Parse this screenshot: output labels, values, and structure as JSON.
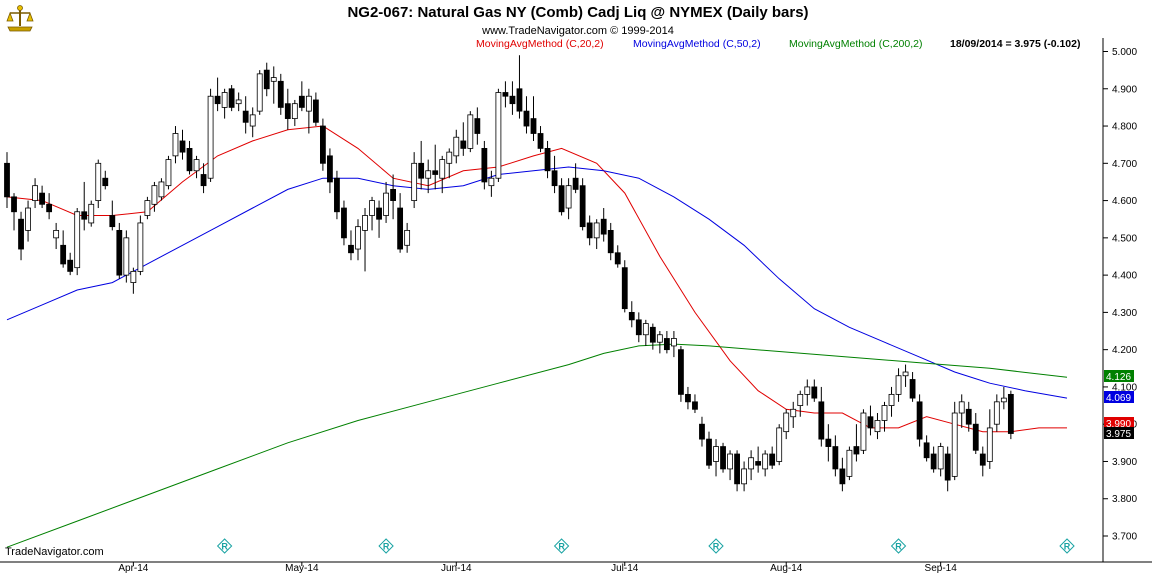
{
  "header": {
    "title": "NG2-067:  Natural Gas NY (Comb) Cadj Liq @ NYMEX  (Daily bars)",
    "copyright": "www.TradeNavigator.com © 1999-2014",
    "legend": [
      {
        "label": "MovingAvgMethod (C,20,2)",
        "color": "#e00000"
      },
      {
        "label": "MovingAvgMethod (C,50,2)",
        "color": "#0000e0"
      },
      {
        "label": "MovingAvgMethod (C,200,2)",
        "color": "#008000"
      }
    ],
    "last_quote": "18/09/2014 = 3.975 (-0.102)"
  },
  "footer": {
    "brand": "TradeNavigator.com"
  },
  "chart_data": {
    "type": "candlestick",
    "symbol": "NG2-067",
    "ylim": [
      3.67,
      5.03
    ],
    "yticks": [
      "5.000",
      "4.900",
      "4.800",
      "4.700",
      "4.600",
      "4.500",
      "4.400",
      "4.300",
      "4.200",
      "4.100",
      "4.000",
      "3.900",
      "3.800",
      "3.700"
    ],
    "xticks": [
      {
        "label": "Apr-14",
        "index": 18
      },
      {
        "label": "May-14",
        "index": 42
      },
      {
        "label": "Jun-14",
        "index": 64
      },
      {
        "label": "Jul-14",
        "index": 88
      },
      {
        "label": "Aug-14",
        "index": 111
      },
      {
        "label": "Sep-14",
        "index": 133
      }
    ],
    "roll_markers": [
      31,
      54,
      79,
      101,
      127,
      151
    ],
    "last_values": [
      {
        "label": "4.126",
        "value": 4.126,
        "bg": "#008000",
        "fg": "#ffffff"
      },
      {
        "label": "4.069",
        "value": 4.069,
        "bg": "#0000e0",
        "fg": "#ffffff"
      },
      {
        "label": "3.990",
        "value": 3.99,
        "bg": "#e00000",
        "fg": "#ffffff"
      },
      {
        "label": "3.975",
        "value": 3.975,
        "bg": "#000000",
        "fg": "#ffffff"
      }
    ],
    "ohlc": [
      [
        4.7,
        4.73,
        4.58,
        4.61
      ],
      [
        4.61,
        4.62,
        4.52,
        4.57
      ],
      [
        4.55,
        4.57,
        4.44,
        4.47
      ],
      [
        4.52,
        4.6,
        4.49,
        4.58
      ],
      [
        4.6,
        4.66,
        4.58,
        4.64
      ],
      [
        4.62,
        4.64,
        4.58,
        4.59
      ],
      [
        4.59,
        4.62,
        4.55,
        4.57
      ],
      [
        4.5,
        4.54,
        4.47,
        4.52
      ],
      [
        4.48,
        4.52,
        4.42,
        4.43
      ],
      [
        4.44,
        4.46,
        4.4,
        4.41
      ],
      [
        4.42,
        4.58,
        4.4,
        4.57
      ],
      [
        4.57,
        4.65,
        4.52,
        4.55
      ],
      [
        4.54,
        4.6,
        4.53,
        4.59
      ],
      [
        4.6,
        4.71,
        4.58,
        4.7
      ],
      [
        4.66,
        4.68,
        4.63,
        4.64
      ],
      [
        4.56,
        4.6,
        4.52,
        4.53
      ],
      [
        4.52,
        4.54,
        4.39,
        4.4
      ],
      [
        4.4,
        4.52,
        4.38,
        4.5
      ],
      [
        4.38,
        4.42,
        4.35,
        4.41
      ],
      [
        4.41,
        4.56,
        4.4,
        4.54
      ],
      [
        4.56,
        4.61,
        4.55,
        4.6
      ],
      [
        4.59,
        4.65,
        4.57,
        4.64
      ],
      [
        4.61,
        4.66,
        4.6,
        4.65
      ],
      [
        4.64,
        4.72,
        4.63,
        4.71
      ],
      [
        4.72,
        4.8,
        4.7,
        4.78
      ],
      [
        4.76,
        4.79,
        4.71,
        4.73
      ],
      [
        4.74,
        4.76,
        4.67,
        4.68
      ],
      [
        4.68,
        4.72,
        4.66,
        4.71
      ],
      [
        4.67,
        4.7,
        4.62,
        4.64
      ],
      [
        4.66,
        4.9,
        4.65,
        4.88
      ],
      [
        4.88,
        4.93,
        4.84,
        4.86
      ],
      [
        4.85,
        4.9,
        4.82,
        4.89
      ],
      [
        4.9,
        4.91,
        4.84,
        4.85
      ],
      [
        4.86,
        4.89,
        4.84,
        4.87
      ],
      [
        4.84,
        4.88,
        4.78,
        4.81
      ],
      [
        4.8,
        4.85,
        4.77,
        4.83
      ],
      [
        4.84,
        4.95,
        4.83,
        4.94
      ],
      [
        4.95,
        4.97,
        4.88,
        4.9
      ],
      [
        4.92,
        4.96,
        4.86,
        4.93
      ],
      [
        4.92,
        4.94,
        4.83,
        4.85
      ],
      [
        4.86,
        4.9,
        4.79,
        4.82
      ],
      [
        4.82,
        4.87,
        4.8,
        4.86
      ],
      [
        4.88,
        4.92,
        4.84,
        4.85
      ],
      [
        4.84,
        4.9,
        4.78,
        4.88
      ],
      [
        4.87,
        4.89,
        4.8,
        4.81
      ],
      [
        4.8,
        4.82,
        4.68,
        4.7
      ],
      [
        4.72,
        4.74,
        4.62,
        4.65
      ],
      [
        4.66,
        4.68,
        4.55,
        4.57
      ],
      [
        4.58,
        4.6,
        4.48,
        4.5
      ],
      [
        4.48,
        4.52,
        4.44,
        4.46
      ],
      [
        4.47,
        4.55,
        4.44,
        4.53
      ],
      [
        4.52,
        4.58,
        4.41,
        4.56
      ],
      [
        4.56,
        4.61,
        4.52,
        4.6
      ],
      [
        4.58,
        4.6,
        4.5,
        4.55
      ],
      [
        4.56,
        4.65,
        4.54,
        4.62
      ],
      [
        4.63,
        4.67,
        4.55,
        4.6
      ],
      [
        4.58,
        4.62,
        4.46,
        4.47
      ],
      [
        4.48,
        4.54,
        4.46,
        4.52
      ],
      [
        4.6,
        4.73,
        4.58,
        4.7
      ],
      [
        4.7,
        4.76,
        4.63,
        4.66
      ],
      [
        4.66,
        4.71,
        4.62,
        4.68
      ],
      [
        4.68,
        4.75,
        4.63,
        4.67
      ],
      [
        4.66,
        4.72,
        4.62,
        4.71
      ],
      [
        4.7,
        4.74,
        4.66,
        4.73
      ],
      [
        4.72,
        4.79,
        4.7,
        4.77
      ],
      [
        4.76,
        4.81,
        4.72,
        4.74
      ],
      [
        4.74,
        4.84,
        4.73,
        4.83
      ],
      [
        4.82,
        4.85,
        4.75,
        4.78
      ],
      [
        4.74,
        4.76,
        4.63,
        4.65
      ],
      [
        4.64,
        4.68,
        4.61,
        4.66
      ],
      [
        4.66,
        4.9,
        4.65,
        4.89
      ],
      [
        4.89,
        4.92,
        4.85,
        4.88
      ],
      [
        4.88,
        4.92,
        4.83,
        4.86
      ],
      [
        4.9,
        4.99,
        4.82,
        4.84
      ],
      [
        4.84,
        4.88,
        4.78,
        4.8
      ],
      [
        4.82,
        4.88,
        4.76,
        4.78
      ],
      [
        4.78,
        4.8,
        4.73,
        4.74
      ],
      [
        4.74,
        4.76,
        4.66,
        4.68
      ],
      [
        4.68,
        4.72,
        4.62,
        4.64
      ],
      [
        4.64,
        4.66,
        4.56,
        4.57
      ],
      [
        4.58,
        4.66,
        4.55,
        4.64
      ],
      [
        4.66,
        4.7,
        4.62,
        4.63
      ],
      [
        4.64,
        4.66,
        4.52,
        4.53
      ],
      [
        4.54,
        4.56,
        4.48,
        4.5
      ],
      [
        4.5,
        4.55,
        4.47,
        4.54
      ],
      [
        4.55,
        4.58,
        4.49,
        4.51
      ],
      [
        4.52,
        4.54,
        4.44,
        4.46
      ],
      [
        4.46,
        4.48,
        4.42,
        4.43
      ],
      [
        4.42,
        4.44,
        4.3,
        4.31
      ],
      [
        4.3,
        4.33,
        4.26,
        4.28
      ],
      [
        4.28,
        4.3,
        4.22,
        4.24
      ],
      [
        4.24,
        4.28,
        4.21,
        4.27
      ],
      [
        4.26,
        4.27,
        4.2,
        4.22
      ],
      [
        4.22,
        4.25,
        4.19,
        4.24
      ],
      [
        4.23,
        4.25,
        4.19,
        4.2
      ],
      [
        4.21,
        4.25,
        4.18,
        4.23
      ],
      [
        4.2,
        4.21,
        4.06,
        4.08
      ],
      [
        4.08,
        4.1,
        4.04,
        4.06
      ],
      [
        4.06,
        4.08,
        4.03,
        4.04
      ],
      [
        4.0,
        4.02,
        3.94,
        3.96
      ],
      [
        3.96,
        3.98,
        3.88,
        3.89
      ],
      [
        3.9,
        3.96,
        3.86,
        3.94
      ],
      [
        3.94,
        3.95,
        3.87,
        3.88
      ],
      [
        3.88,
        3.93,
        3.85,
        3.92
      ],
      [
        3.92,
        3.93,
        3.82,
        3.84
      ],
      [
        3.84,
        3.9,
        3.82,
        3.88
      ],
      [
        3.88,
        3.93,
        3.85,
        3.91
      ],
      [
        3.9,
        3.94,
        3.87,
        3.89
      ],
      [
        3.88,
        3.93,
        3.86,
        3.92
      ],
      [
        3.92,
        3.94,
        3.88,
        3.89
      ],
      [
        3.9,
        4.0,
        3.89,
        3.99
      ],
      [
        3.98,
        4.04,
        3.96,
        4.03
      ],
      [
        4.02,
        4.06,
        3.99,
        4.04
      ],
      [
        4.05,
        4.09,
        4.02,
        4.08
      ],
      [
        4.08,
        4.12,
        4.05,
        4.1
      ],
      [
        4.1,
        4.12,
        4.06,
        4.07
      ],
      [
        4.06,
        4.1,
        3.94,
        3.96
      ],
      [
        3.96,
        4.0,
        3.9,
        3.94
      ],
      [
        3.94,
        3.97,
        3.86,
        3.88
      ],
      [
        3.88,
        3.91,
        3.82,
        3.84
      ],
      [
        3.86,
        3.94,
        3.85,
        3.93
      ],
      [
        3.94,
        4.0,
        3.9,
        3.92
      ],
      [
        3.93,
        4.04,
        3.92,
        4.03
      ],
      [
        4.02,
        4.05,
        3.97,
        3.99
      ],
      [
        3.98,
        4.03,
        3.96,
        4.01
      ],
      [
        4.01,
        4.06,
        3.98,
        4.05
      ],
      [
        4.05,
        4.1,
        4.02,
        4.08
      ],
      [
        4.08,
        4.15,
        4.06,
        4.13
      ],
      [
        4.13,
        4.16,
        4.1,
        4.14
      ],
      [
        4.12,
        4.14,
        4.06,
        4.07
      ],
      [
        4.06,
        4.08,
        3.94,
        3.96
      ],
      [
        3.95,
        3.97,
        3.9,
        3.91
      ],
      [
        3.92,
        3.94,
        3.87,
        3.88
      ],
      [
        3.88,
        3.95,
        3.86,
        3.94
      ],
      [
        3.92,
        3.94,
        3.82,
        3.85
      ],
      [
        3.86,
        4.06,
        3.85,
        4.03
      ],
      [
        4.03,
        4.08,
        3.99,
        4.06
      ],
      [
        4.04,
        4.06,
        3.98,
        4.0
      ],
      [
        4.0,
        4.03,
        3.92,
        3.93
      ],
      [
        3.92,
        3.94,
        3.86,
        3.89
      ],
      [
        3.9,
        4.04,
        3.88,
        3.99
      ],
      [
        4.0,
        4.08,
        3.98,
        4.06
      ],
      [
        4.06,
        4.1,
        4.04,
        4.07
      ],
      [
        4.08,
        4.09,
        3.96,
        3.975
      ]
    ],
    "series": [
      {
        "name": "MovingAvgMethod (C,20,2)",
        "color": "#e00000",
        "points": [
          [
            0,
            4.61
          ],
          [
            5,
            4.6
          ],
          [
            10,
            4.56
          ],
          [
            15,
            4.56
          ],
          [
            20,
            4.57
          ],
          [
            25,
            4.65
          ],
          [
            30,
            4.72
          ],
          [
            35,
            4.76
          ],
          [
            40,
            4.79
          ],
          [
            45,
            4.8
          ],
          [
            50,
            4.74
          ],
          [
            55,
            4.66
          ],
          [
            60,
            4.64
          ],
          [
            65,
            4.68
          ],
          [
            70,
            4.69
          ],
          [
            75,
            4.72
          ],
          [
            79,
            4.74
          ],
          [
            84,
            4.7
          ],
          [
            88,
            4.62
          ],
          [
            93,
            4.45
          ],
          [
            98,
            4.3
          ],
          [
            103,
            4.17
          ],
          [
            107,
            4.09
          ],
          [
            111,
            4.04
          ],
          [
            115,
            4.03
          ],
          [
            119,
            4.03
          ],
          [
            123,
            3.99
          ],
          [
            127,
            3.99
          ],
          [
            131,
            4.02
          ],
          [
            135,
            4.0
          ],
          [
            139,
            3.98
          ],
          [
            143,
            3.98
          ],
          [
            147,
            3.99
          ],
          [
            151,
            3.99
          ]
        ]
      },
      {
        "name": "MovingAvgMethod (C,50,2)",
        "color": "#0000e0",
        "points": [
          [
            0,
            4.28
          ],
          [
            5,
            4.32
          ],
          [
            10,
            4.36
          ],
          [
            15,
            4.38
          ],
          [
            20,
            4.43
          ],
          [
            25,
            4.48
          ],
          [
            30,
            4.53
          ],
          [
            35,
            4.58
          ],
          [
            40,
            4.63
          ],
          [
            45,
            4.66
          ],
          [
            50,
            4.66
          ],
          [
            55,
            4.64
          ],
          [
            60,
            4.63
          ],
          [
            65,
            4.64
          ],
          [
            70,
            4.67
          ],
          [
            75,
            4.68
          ],
          [
            80,
            4.69
          ],
          [
            85,
            4.68
          ],
          [
            90,
            4.66
          ],
          [
            95,
            4.61
          ],
          [
            100,
            4.55
          ],
          [
            105,
            4.48
          ],
          [
            110,
            4.39
          ],
          [
            115,
            4.31
          ],
          [
            120,
            4.26
          ],
          [
            125,
            4.22
          ],
          [
            130,
            4.18
          ],
          [
            135,
            4.14
          ],
          [
            140,
            4.11
          ],
          [
            145,
            4.09
          ],
          [
            151,
            4.07
          ]
        ]
      },
      {
        "name": "MovingAvgMethod (C,200,2)",
        "color": "#008000",
        "points": [
          [
            0,
            3.67
          ],
          [
            10,
            3.74
          ],
          [
            20,
            3.81
          ],
          [
            30,
            3.88
          ],
          [
            40,
            3.95
          ],
          [
            50,
            4.01
          ],
          [
            60,
            4.06
          ],
          [
            70,
            4.11
          ],
          [
            80,
            4.16
          ],
          [
            85,
            4.19
          ],
          [
            90,
            4.21
          ],
          [
            95,
            4.215
          ],
          [
            100,
            4.21
          ],
          [
            110,
            4.195
          ],
          [
            120,
            4.18
          ],
          [
            130,
            4.165
          ],
          [
            140,
            4.15
          ],
          [
            151,
            4.126
          ]
        ]
      }
    ]
  }
}
